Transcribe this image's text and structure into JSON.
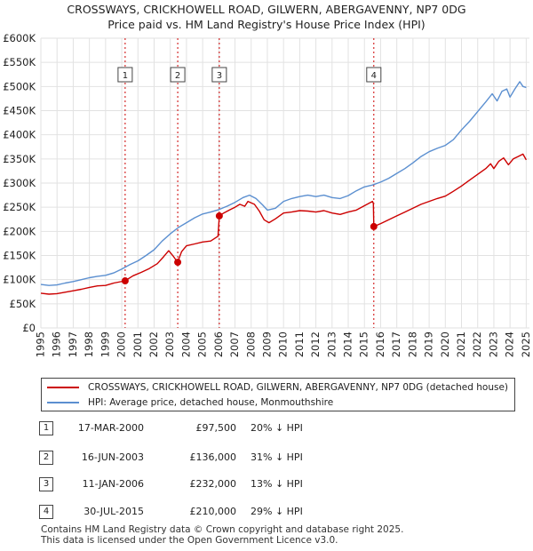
{
  "chart_data": {
    "type": "line",
    "title": "CROSSWAYS, CRICKHOWELL ROAD, GILWERN, ABERGAVENNY, NP7 0DG",
    "subtitle": "Price paid vs. HM Land Registry's House Price Index (HPI)",
    "xlim": [
      1995,
      2025.2
    ],
    "ylim": [
      0,
      600000
    ],
    "y_ticks": [
      0,
      50000,
      100000,
      150000,
      200000,
      250000,
      300000,
      350000,
      400000,
      450000,
      500000,
      550000,
      600000
    ],
    "y_tick_labels": [
      "£0",
      "£50K",
      "£100K",
      "£150K",
      "£200K",
      "£250K",
      "£300K",
      "£350K",
      "£400K",
      "£450K",
      "£500K",
      "£550K",
      "£600K"
    ],
    "x_ticks": [
      1995,
      1996,
      1997,
      1998,
      1999,
      2000,
      2001,
      2002,
      2003,
      2004,
      2005,
      2006,
      2007,
      2008,
      2009,
      2010,
      2011,
      2012,
      2013,
      2014,
      2015,
      2016,
      2017,
      2018,
      2019,
      2020,
      2021,
      2022,
      2023,
      2024,
      2025
    ],
    "x_tick_labels": [
      "1995",
      "1996",
      "1997",
      "1998",
      "1999",
      "2000",
      "2001",
      "2002",
      "2003",
      "2004",
      "2005",
      "2006",
      "2007",
      "2008",
      "2009",
      "2010",
      "2011",
      "2012",
      "2013",
      "2014",
      "2015",
      "2016",
      "2017",
      "2018",
      "2019",
      "2020",
      "2021",
      "2022",
      "2023",
      "2024",
      "2025"
    ],
    "grid": true,
    "series": [
      {
        "name": "CROSSWAYS, CRICKHOWELL ROAD, GILWERN, ABERGAVENNY, NP7 0DG (detached house)",
        "color": "#cc0000",
        "x": [
          1995,
          1995.5,
          1996,
          1996.5,
          1997,
          1997.5,
          1998,
          1998.5,
          1999,
          1999.5,
          2000.2,
          2000.7,
          2001.2,
          2001.7,
          2002.2,
          2002.6,
          2002.9,
          2003.2,
          2003.45,
          2003.7,
          2004.0,
          2004.5,
          2005.0,
          2005.5,
          2005.95,
          2006.03,
          2006.3,
          2006.7,
          2007.0,
          2007.3,
          2007.6,
          2007.8,
          2008.2,
          2008.5,
          2008.8,
          2009.1,
          2009.5,
          2010.0,
          2010.5,
          2011.0,
          2011.5,
          2012.0,
          2012.5,
          2013.0,
          2013.5,
          2014.0,
          2014.5,
          2015.0,
          2015.5,
          2015.55,
          2015.58,
          2016.0,
          2016.5,
          2017.0,
          2017.5,
          2018.0,
          2018.5,
          2019.0,
          2019.5,
          2020.0,
          2020.5,
          2021.0,
          2021.5,
          2022.0,
          2022.5,
          2022.8,
          2023.0,
          2023.3,
          2023.6,
          2023.9,
          2024.2,
          2024.5,
          2024.8,
          2025.0
        ],
        "values": [
          72000,
          70000,
          71000,
          74000,
          77000,
          80000,
          84000,
          87000,
          88000,
          93000,
          97500,
          108000,
          115000,
          123000,
          133000,
          148000,
          160000,
          148000,
          136000,
          158000,
          170000,
          174000,
          178000,
          180000,
          190000,
          232000,
          238000,
          245000,
          250000,
          256000,
          252000,
          262000,
          256000,
          242000,
          224000,
          218000,
          226000,
          238000,
          240000,
          243000,
          242000,
          240000,
          243000,
          238000,
          235000,
          240000,
          244000,
          253000,
          262000,
          258000,
          210000,
          216000,
          224000,
          232000,
          240000,
          248000,
          256000,
          262000,
          268000,
          273000,
          283000,
          294000,
          306000,
          318000,
          330000,
          340000,
          330000,
          345000,
          352000,
          338000,
          350000,
          355000,
          360000,
          348000
        ]
      },
      {
        "name": "HPI: Average price, detached house, Monmouthshire",
        "color": "#5b8fd0",
        "x": [
          1995,
          1995.5,
          1996,
          1996.5,
          1997,
          1997.5,
          1998,
          1998.5,
          1999,
          1999.5,
          2000.0,
          2000.5,
          2001.0,
          2001.5,
          2002.0,
          2002.5,
          2003.0,
          2003.5,
          2004.0,
          2004.5,
          2005.0,
          2005.5,
          2006.0,
          2006.5,
          2007.0,
          2007.5,
          2007.9,
          2008.3,
          2008.7,
          2009.0,
          2009.5,
          2010.0,
          2010.5,
          2011.0,
          2011.5,
          2012.0,
          2012.5,
          2013.0,
          2013.5,
          2014.0,
          2014.5,
          2015.0,
          2015.5,
          2016.0,
          2016.5,
          2017.0,
          2017.5,
          2018.0,
          2018.5,
          2019.0,
          2019.5,
          2020.0,
          2020.5,
          2021.0,
          2021.5,
          2022.0,
          2022.5,
          2022.9,
          2023.2,
          2023.5,
          2023.8,
          2024.0,
          2024.3,
          2024.6,
          2024.8,
          2025.0
        ],
        "values": [
          90000,
          88000,
          89000,
          93000,
          96000,
          100000,
          104000,
          107000,
          109000,
          114000,
          122000,
          131000,
          139000,
          150000,
          162000,
          180000,
          195000,
          208000,
          218000,
          228000,
          236000,
          240000,
          245000,
          252000,
          260000,
          270000,
          275000,
          268000,
          255000,
          244000,
          248000,
          262000,
          268000,
          272000,
          275000,
          272000,
          275000,
          270000,
          268000,
          274000,
          284000,
          292000,
          296000,
          302000,
          310000,
          320000,
          330000,
          342000,
          355000,
          365000,
          372000,
          378000,
          390000,
          410000,
          428000,
          448000,
          468000,
          485000,
          470000,
          490000,
          495000,
          478000,
          495000,
          510000,
          500000,
          498000
        ]
      }
    ],
    "sales": [
      {
        "label": "1",
        "x": 2000.21,
        "price": 97500,
        "date": "17-MAR-2000",
        "price_text": "£97,500",
        "hpi_text": "20% ↓ HPI"
      },
      {
        "label": "2",
        "x": 2003.46,
        "price": 136000,
        "date": "16-JUN-2003",
        "price_text": "£136,000",
        "hpi_text": "31% ↓ HPI"
      },
      {
        "label": "3",
        "x": 2006.03,
        "price": 232000,
        "date": "11-JAN-2006",
        "price_text": "£232,000",
        "hpi_text": "13% ↓ HPI"
      },
      {
        "label": "4",
        "x": 2015.58,
        "price": 210000,
        "date": "30-JUL-2015",
        "price_text": "£210,000",
        "hpi_text": "29% ↓ HPI"
      }
    ]
  },
  "legend": {
    "property_label": "CROSSWAYS, CRICKHOWELL ROAD, GILWERN, ABERGAVENNY, NP7 0DG (detached house)",
    "hpi_label": "HPI: Average price, detached house, Monmouthshire",
    "property_color": "#cc0000",
    "hpi_color": "#5b8fd0"
  },
  "footer": {
    "line1": "Contains HM Land Registry data © Crown copyright and database right 2025.",
    "line2": "This data is licensed under the Open Government Licence v3.0."
  }
}
